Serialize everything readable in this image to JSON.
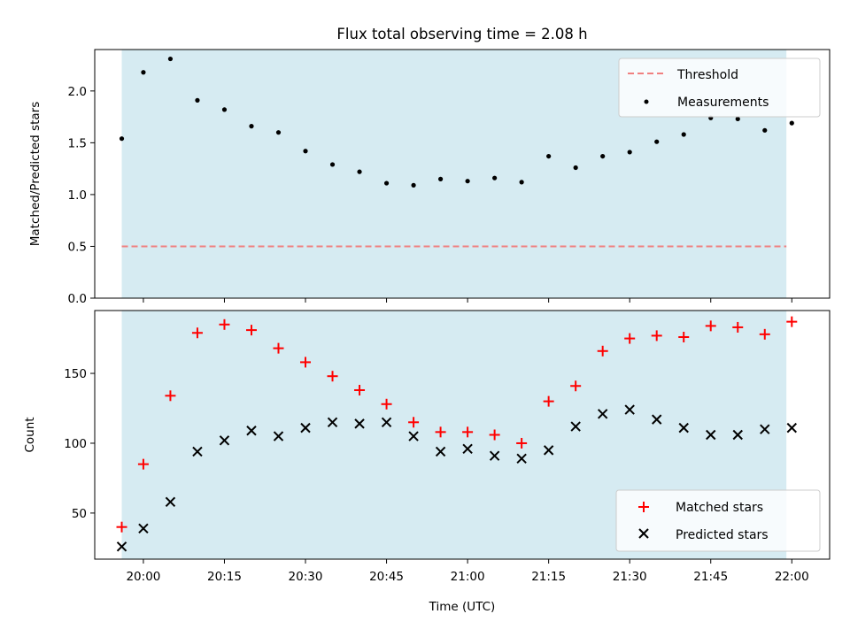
{
  "chart_data": [
    {
      "type": "scatter",
      "title": "Flux total observing time = 2.08 h",
      "xlabel": "",
      "ylabel": "Matched/Predicted stars",
      "xlim": [
        "19:51",
        "22:07"
      ],
      "ylim": [
        0,
        2.4
      ],
      "yticks": [
        "0.0",
        "0.5",
        "1.0",
        "1.5",
        "2.0"
      ],
      "xticks": [
        "20:00",
        "20:15",
        "20:30",
        "20:45",
        "21:00",
        "21:15",
        "21:30",
        "21:45",
        "22:00"
      ],
      "xticks_labeled": false,
      "grid": false,
      "shaded_span": {
        "from": "19:56",
        "to": "21:59",
        "color": "#add8e6"
      },
      "legend": {
        "placement": "top-right",
        "entries": [
          "Threshold",
          "Measurements"
        ]
      },
      "threshold": {
        "name": "Threshold",
        "value": 0.5,
        "color": "#f08080"
      },
      "series": [
        {
          "name": "Measurements",
          "color": "#000000",
          "x": [
            "19:56",
            "20:00",
            "20:05",
            "20:10",
            "20:15",
            "20:20",
            "20:25",
            "20:30",
            "20:35",
            "20:40",
            "20:45",
            "20:50",
            "20:55",
            "21:00",
            "21:05",
            "21:10",
            "21:15",
            "21:20",
            "21:25",
            "21:30",
            "21:35",
            "21:40",
            "21:45",
            "21:50",
            "21:55",
            "22:00"
          ],
          "y": [
            1.54,
            2.18,
            2.31,
            1.91,
            1.82,
            1.66,
            1.6,
            1.42,
            1.29,
            1.22,
            1.11,
            1.09,
            1.15,
            1.13,
            1.16,
            1.12,
            1.37,
            1.26,
            1.37,
            1.41,
            1.51,
            1.58,
            1.74,
            1.73,
            1.62,
            1.69
          ]
        }
      ]
    },
    {
      "type": "scatter",
      "title": "",
      "xlabel": "Time (UTC)",
      "ylabel": "Count",
      "xlim": [
        "19:51",
        "22:07"
      ],
      "ylim": [
        17,
        195
      ],
      "yticks": [
        "50",
        "100",
        "150"
      ],
      "xticks": [
        "20:00",
        "20:15",
        "20:30",
        "20:45",
        "21:00",
        "21:15",
        "21:30",
        "21:45",
        "22:00"
      ],
      "grid": false,
      "shaded_span": {
        "from": "19:56",
        "to": "21:59",
        "color": "#add8e6"
      },
      "legend": {
        "placement": "bottom-right",
        "entries": [
          "Matched stars",
          "Predicted stars"
        ]
      },
      "series": [
        {
          "name": "Matched stars",
          "marker": "plus",
          "color": "#ff0000",
          "x": [
            "19:56",
            "20:00",
            "20:05",
            "20:10",
            "20:15",
            "20:20",
            "20:25",
            "20:30",
            "20:35",
            "20:40",
            "20:45",
            "20:50",
            "20:55",
            "21:00",
            "21:05",
            "21:10",
            "21:15",
            "21:20",
            "21:25",
            "21:30",
            "21:35",
            "21:40",
            "21:45",
            "21:50",
            "21:55",
            "22:00"
          ],
          "y": [
            40,
            85,
            134,
            179,
            185,
            181,
            168,
            158,
            148,
            138,
            128,
            115,
            108,
            108,
            106,
            100,
            130,
            141,
            166,
            175,
            177,
            176,
            184,
            183,
            178,
            187
          ]
        },
        {
          "name": "Predicted stars",
          "marker": "x",
          "color": "#000000",
          "x": [
            "19:56",
            "20:00",
            "20:05",
            "20:10",
            "20:15",
            "20:20",
            "20:25",
            "20:30",
            "20:35",
            "20:40",
            "20:45",
            "20:50",
            "20:55",
            "21:00",
            "21:05",
            "21:10",
            "21:15",
            "21:20",
            "21:25",
            "21:30",
            "21:35",
            "21:40",
            "21:45",
            "21:50",
            "21:55",
            "22:00"
          ],
          "y": [
            26,
            39,
            58,
            94,
            102,
            109,
            105,
            111,
            115,
            114,
            115,
            105,
            94,
            96,
            91,
            89,
            95,
            112,
            121,
            124,
            117,
            111,
            106,
            106,
            110,
            111
          ]
        }
      ]
    }
  ]
}
